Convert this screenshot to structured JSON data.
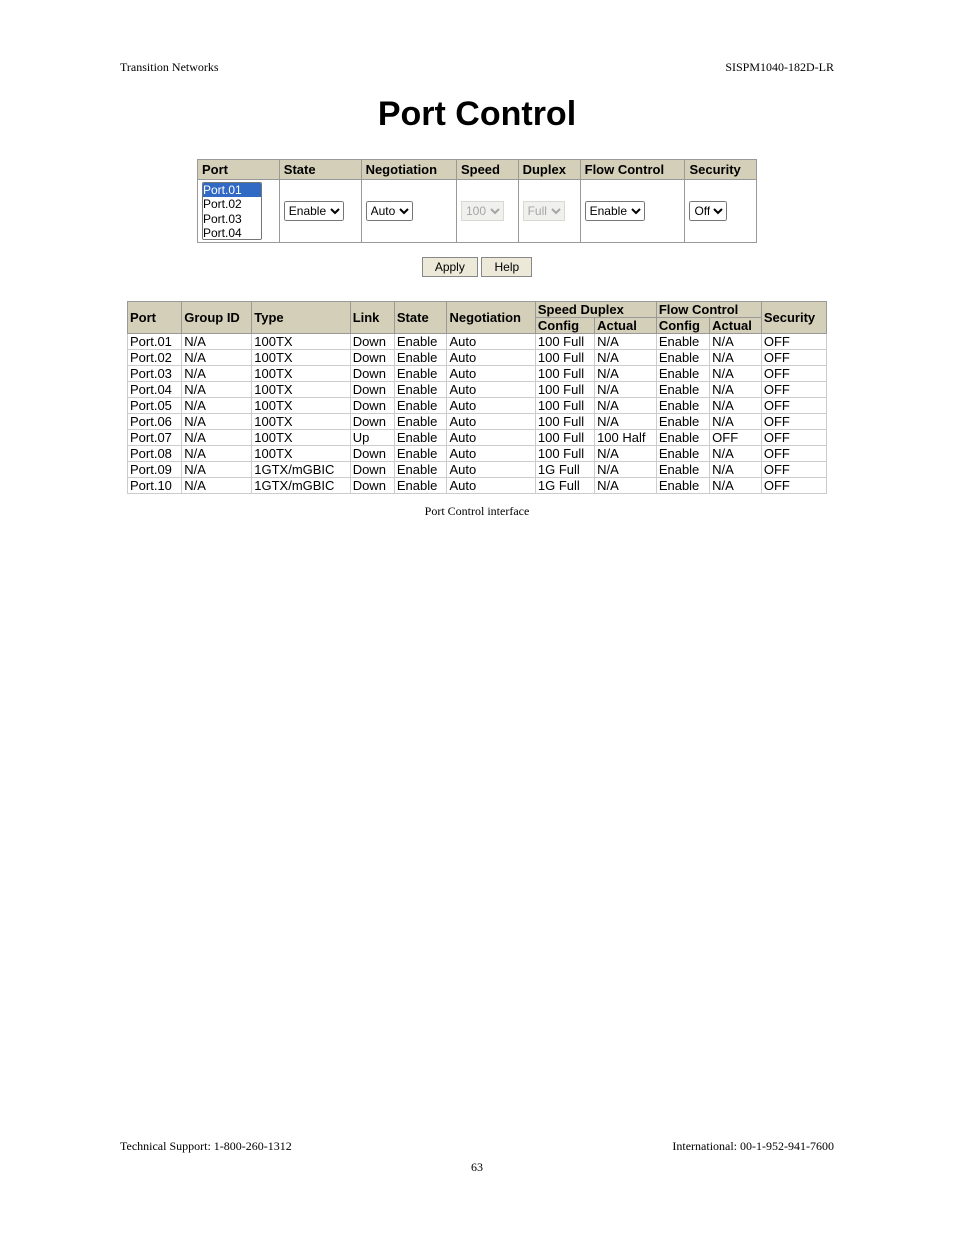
{
  "doc": {
    "header_left": "Transition Networks",
    "header_right": "SISPM1040-182D-LR",
    "title": "Port Control",
    "caption": "Port Control interface",
    "footer_left": "Technical Support: 1-800-260-1312",
    "footer_right": "International: 00-1-952-941-7600",
    "page_number": "63"
  },
  "control_table": {
    "headers": [
      "Port",
      "State",
      "Negotiation",
      "Speed",
      "Duplex",
      "Flow Control",
      "Security"
    ],
    "port_list": [
      "Port.01",
      "Port.02",
      "Port.03",
      "Port.04"
    ],
    "port_selected": "Port.01",
    "state": {
      "value": "Enable",
      "disabled": false
    },
    "negotiation": {
      "value": "Auto",
      "disabled": false
    },
    "speed": {
      "value": "100",
      "disabled": true
    },
    "duplex": {
      "value": "Full",
      "disabled": true
    },
    "flow_control": {
      "value": "Enable",
      "disabled": false
    },
    "security": {
      "value": "Off",
      "disabled": false
    },
    "buttons": {
      "apply": "Apply",
      "help": "Help"
    }
  },
  "status_table": {
    "header_row1": {
      "port": "Port",
      "group_id": "Group ID",
      "type": "Type",
      "link": "Link",
      "state": "State",
      "negotiation": "Negotiation",
      "speed_duplex": "Speed Duplex",
      "flow_control": "Flow Control",
      "security": "Security"
    },
    "header_row2": {
      "sd_config": "Config",
      "sd_actual": "Actual",
      "fc_config": "Config",
      "fc_actual": "Actual"
    },
    "rows": [
      {
        "port": "Port.01",
        "group_id": "N/A",
        "type": "100TX",
        "link": "Down",
        "state": "Enable",
        "negotiation": "Auto",
        "sd_config": "100 Full",
        "sd_actual": "N/A",
        "fc_config": "Enable",
        "fc_actual": "N/A",
        "security": "OFF"
      },
      {
        "port": "Port.02",
        "group_id": "N/A",
        "type": "100TX",
        "link": "Down",
        "state": "Enable",
        "negotiation": "Auto",
        "sd_config": "100 Full",
        "sd_actual": "N/A",
        "fc_config": "Enable",
        "fc_actual": "N/A",
        "security": "OFF"
      },
      {
        "port": "Port.03",
        "group_id": "N/A",
        "type": "100TX",
        "link": "Down",
        "state": "Enable",
        "negotiation": "Auto",
        "sd_config": "100 Full",
        "sd_actual": "N/A",
        "fc_config": "Enable",
        "fc_actual": "N/A",
        "security": "OFF"
      },
      {
        "port": "Port.04",
        "group_id": "N/A",
        "type": "100TX",
        "link": "Down",
        "state": "Enable",
        "negotiation": "Auto",
        "sd_config": "100 Full",
        "sd_actual": "N/A",
        "fc_config": "Enable",
        "fc_actual": "N/A",
        "security": "OFF"
      },
      {
        "port": "Port.05",
        "group_id": "N/A",
        "type": "100TX",
        "link": "Down",
        "state": "Enable",
        "negotiation": "Auto",
        "sd_config": "100 Full",
        "sd_actual": "N/A",
        "fc_config": "Enable",
        "fc_actual": "N/A",
        "security": "OFF"
      },
      {
        "port": "Port.06",
        "group_id": "N/A",
        "type": "100TX",
        "link": "Down",
        "state": "Enable",
        "negotiation": "Auto",
        "sd_config": "100 Full",
        "sd_actual": "N/A",
        "fc_config": "Enable",
        "fc_actual": "N/A",
        "security": "OFF"
      },
      {
        "port": "Port.07",
        "group_id": "N/A",
        "type": "100TX",
        "link": "Up",
        "state": "Enable",
        "negotiation": "Auto",
        "sd_config": "100 Full",
        "sd_actual": "100 Half",
        "fc_config": "Enable",
        "fc_actual": "OFF",
        "security": "OFF"
      },
      {
        "port": "Port.08",
        "group_id": "N/A",
        "type": "100TX",
        "link": "Down",
        "state": "Enable",
        "negotiation": "Auto",
        "sd_config": "100 Full",
        "sd_actual": "N/A",
        "fc_config": "Enable",
        "fc_actual": "N/A",
        "security": "OFF"
      },
      {
        "port": "Port.09",
        "group_id": "N/A",
        "type": "1GTX/mGBIC",
        "link": "Down",
        "state": "Enable",
        "negotiation": "Auto",
        "sd_config": "1G Full",
        "sd_actual": "N/A",
        "fc_config": "Enable",
        "fc_actual": "N/A",
        "security": "OFF"
      },
      {
        "port": "Port.10",
        "group_id": "N/A",
        "type": "1GTX/mGBIC",
        "link": "Down",
        "state": "Enable",
        "negotiation": "Auto",
        "sd_config": "1G Full",
        "sd_actual": "N/A",
        "fc_config": "Enable",
        "fc_actual": "N/A",
        "security": "OFF"
      }
    ]
  },
  "colors": {
    "header_bg": "#d4cfb8",
    "listbox_selection": "#316ac5",
    "button_bg": "#ece9d8",
    "disabled_bg": "#ebebe4"
  }
}
